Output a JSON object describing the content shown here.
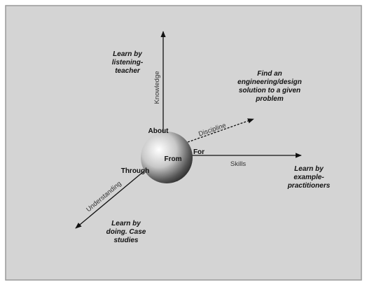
{
  "axes": {
    "up": "Knowledge",
    "right": "Skills",
    "diagonal": "Discipline",
    "down_left": "Understanding"
  },
  "sphere": {
    "top": "About",
    "center": "From",
    "right": "For",
    "left": "Through"
  },
  "notes": {
    "up": [
      "Learn by",
      "listening-",
      "teacher"
    ],
    "right": [
      "Learn by",
      "example-",
      "practitioners"
    ],
    "diagonal": [
      "Find an",
      "engineering/design",
      "solution to a given",
      "problem"
    ],
    "down_left": [
      "Learn by",
      "doing. Case",
      "studies"
    ]
  }
}
